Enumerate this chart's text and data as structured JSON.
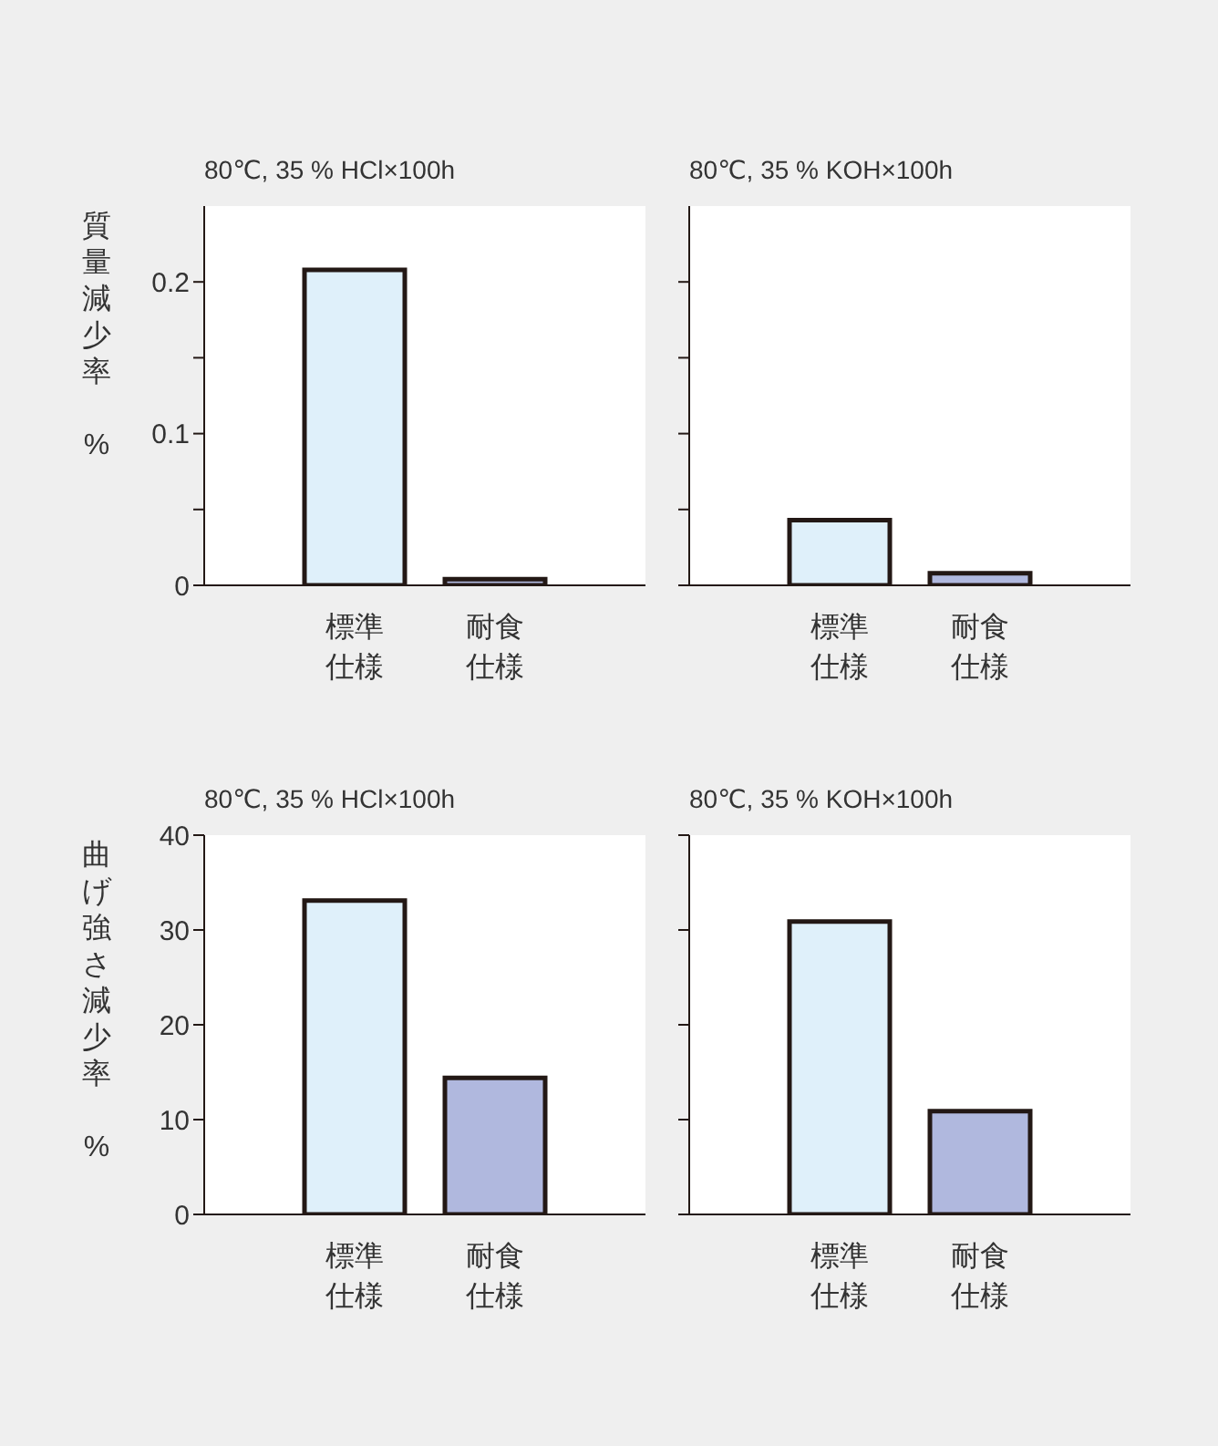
{
  "chart_data": [
    {
      "type": "bar",
      "title": "80℃, 35 % HCl×100h",
      "ylabel": "質量減少率 %",
      "categories": [
        "標準仕様",
        "耐食仕様"
      ],
      "values": [
        0.208,
        0.004
      ],
      "colors": [
        "#dff0fa",
        "#b0b8de"
      ],
      "ylim": [
        0,
        0.25
      ],
      "yticks": [
        0,
        {
          "value": 0.05,
          "label": null
        },
        0.1,
        {
          "value": 0.15,
          "label": null
        },
        0.2
      ]
    },
    {
      "type": "bar",
      "title": "80℃, 35 % KOH×100h",
      "categories": [
        "標準仕様",
        "耐食仕様"
      ],
      "values": [
        0.043,
        0.008
      ],
      "colors": [
        "#dff0fa",
        "#b0b8de"
      ],
      "ylim": [
        0,
        0.25
      ],
      "yticks": [
        0,
        0.05,
        0.1,
        0.15,
        0.2
      ],
      "tick_labels": "x"
    },
    {
      "type": "bar",
      "title": "80℃, 35 % HCl×100h",
      "ylabel": "曲げ強さ減少率 %",
      "categories": [
        "標準仕様",
        "耐食仕様"
      ],
      "values": [
        33.1,
        14.4
      ],
      "colors": [
        "#dff0fa",
        "#b0b8de"
      ],
      "ylim": [
        0,
        40
      ],
      "yticks": [
        0,
        10,
        20,
        30,
        40
      ]
    },
    {
      "type": "bar",
      "title": "80℃, 35 % KOH×100h",
      "categories": [
        "標準仕様",
        "耐食仕様"
      ],
      "values": [
        30.9,
        10.9
      ],
      "colors": [
        "#dff0fa",
        "#b0b8de"
      ],
      "ylim": [
        0,
        40
      ],
      "yticks": [
        0,
        10,
        20,
        30,
        40
      ],
      "tick_labels": "x"
    }
  ]
}
